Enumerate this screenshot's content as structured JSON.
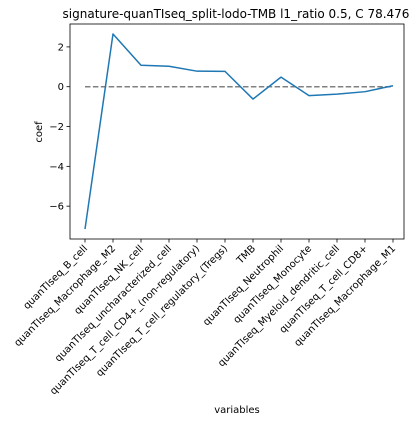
{
  "chart_data": {
    "type": "line",
    "title": "signature-quanTIseq_split-lodo-TMB l1_ratio 0.5, C 78.476",
    "xlabel": "variables",
    "ylabel": "coef",
    "categories": [
      "quanTIseq_B_cell",
      "quanTIseq_Macrophage_M2",
      "quanTIseq_NK_cell",
      "quanTIseq_uncharacterized_cell",
      "quanTIseq_T_cell_CD4+_(non-regulatory)",
      "quanTIseq_T_cell_regulatory_(Tregs)",
      "TMB",
      "quanTIseq_Neutrophil",
      "quanTIseq_Monocyte",
      "quanTIseq_Myeloid_dendritic_cell",
      "quanTIseq_T_cell_CD8+",
      "quanTIseq_Macrophage_M1"
    ],
    "series": [
      {
        "values": [
          -7.15,
          2.65,
          1.08,
          1.03,
          0.78,
          0.77,
          -0.62,
          0.48,
          -0.45,
          -0.37,
          -0.25,
          0.05
        ],
        "color": "#1f77b4"
      }
    ],
    "reference_line": {
      "y": 0,
      "style": "dashed",
      "color": "#808080"
    },
    "yticks": [
      -6,
      -4,
      -2,
      0,
      2
    ],
    "ylim": [
      -7.65,
      3.15
    ],
    "grid": false,
    "legend": "none"
  }
}
